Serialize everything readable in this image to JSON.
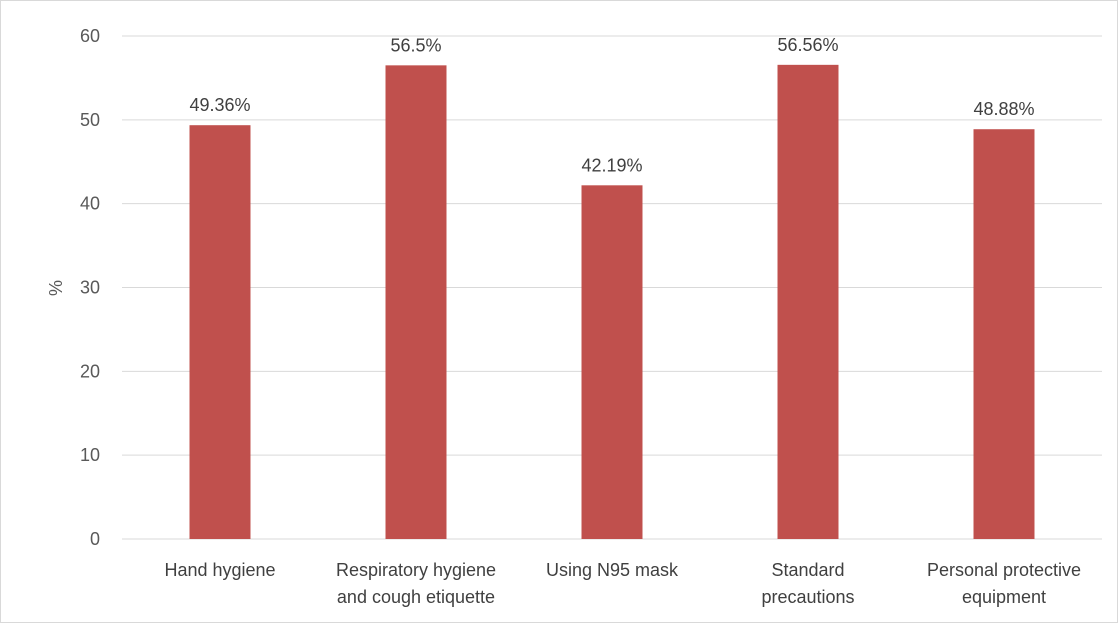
{
  "chart_data": {
    "type": "bar",
    "categories": [
      [
        "Hand hygiene"
      ],
      [
        "Respiratory hygiene",
        "and cough etiquette"
      ],
      [
        "Using N95 mask"
      ],
      [
        "Standard",
        "precautions"
      ],
      [
        "Personal protective",
        "equipment"
      ]
    ],
    "values": [
      49.36,
      56.5,
      42.19,
      56.56,
      48.88
    ],
    "data_labels": [
      "49.36%",
      "56.5%",
      "42.19%",
      "56.56%",
      "48.88%"
    ],
    "title": "",
    "xlabel": "",
    "ylabel": "%",
    "ylim": [
      0,
      60
    ],
    "yticks": [
      0,
      10,
      20,
      30,
      40,
      50,
      60
    ],
    "grid": true,
    "legend": "none",
    "bar_color": "#c0504d",
    "grid_color": "#d9d9d9"
  }
}
